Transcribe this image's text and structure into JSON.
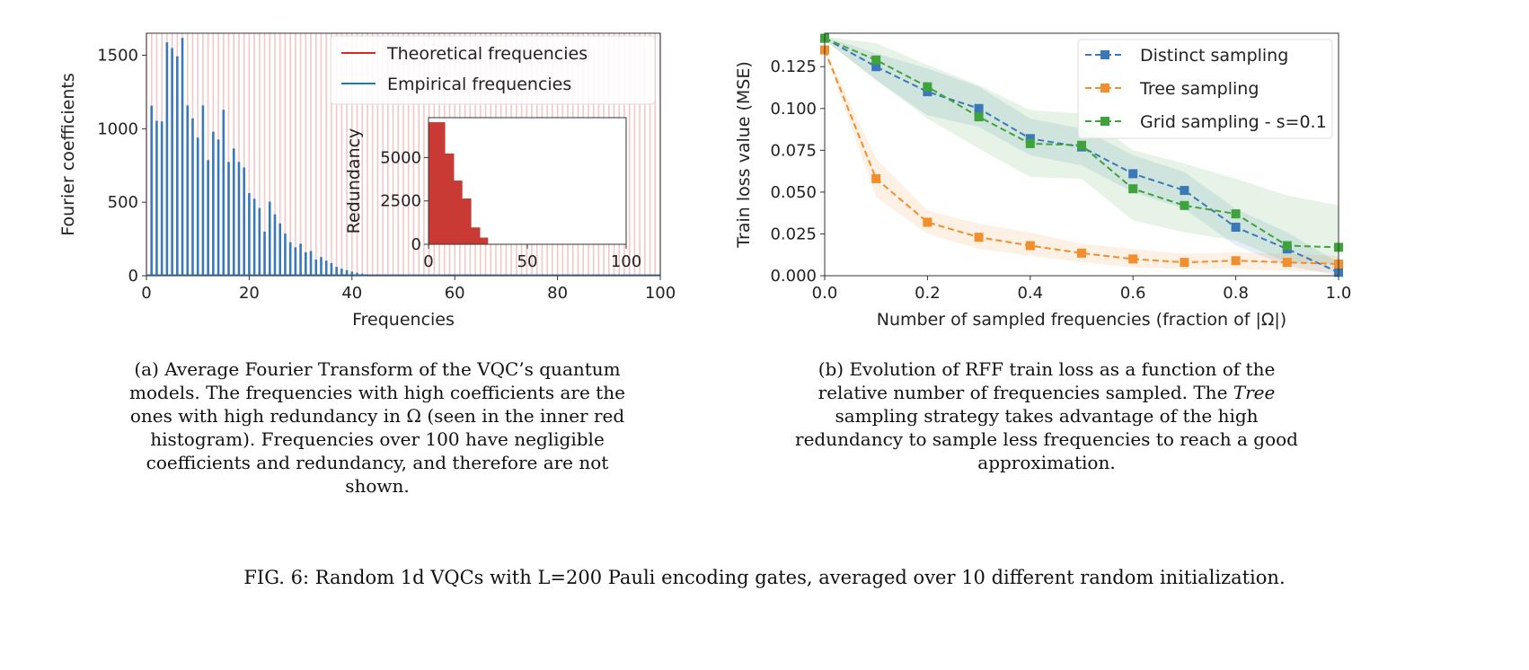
{
  "chart_data": [
    {
      "type": "bar",
      "panel": "(a)",
      "xlabel": "Frequencies",
      "ylabel": "Fourier coefficients",
      "xlim": [
        0,
        100
      ],
      "ylim": [
        0,
        1650
      ],
      "xticks": [
        0,
        20,
        40,
        60,
        80,
        100
      ],
      "yticks": [
        0,
        500,
        1000,
        1500
      ],
      "legend": {
        "placement": "top-right",
        "entries": [
          {
            "name": "Theoretical frequencies",
            "color": "#d62728"
          },
          {
            "name": "Empirical frequencies",
            "color": "#1f77b4"
          }
        ]
      },
      "theoretical_frequencies": {
        "from": 0,
        "to": 100,
        "step": 1,
        "color": "#f4c7c7"
      },
      "series": [
        {
          "name": "Empirical frequencies",
          "color": "#3a78b8",
          "x": [
            1,
            2,
            3,
            4,
            5,
            6,
            7,
            8,
            9,
            10,
            11,
            12,
            13,
            14,
            15,
            16,
            17,
            18,
            19,
            20,
            21,
            22,
            23,
            24,
            25,
            26,
            27,
            28,
            29,
            30,
            31,
            32,
            33,
            34,
            35,
            36,
            37,
            38,
            39,
            40,
            41,
            42,
            43,
            44,
            45,
            46,
            47,
            48
          ],
          "values": [
            1157,
            1054,
            1050,
            1588,
            1549,
            1493,
            1618,
            1159,
            1071,
            940,
            1159,
            787,
            980,
            927,
            1129,
            774,
            866,
            774,
            737,
            562,
            524,
            461,
            300,
            504,
            418,
            356,
            287,
            228,
            194,
            218,
            160,
            168,
            110,
            127,
            103,
            86,
            60,
            48,
            38,
            28,
            20,
            14,
            10,
            7,
            5,
            3,
            2,
            1
          ]
        }
      ],
      "inset": {
        "type": "histogram",
        "ylabel": "Redundancy",
        "xlim": [
          0,
          100
        ],
        "ylim": [
          0,
          7300
        ],
        "xticks": [
          0,
          50,
          100
        ],
        "yticks": [
          0,
          2500,
          5000
        ],
        "color": "#c83a33",
        "bin_edges": [
          0,
          4.1,
          8.3,
          12.8,
          17,
          21.5,
          26,
          30
        ],
        "values": [
          7037,
          7037,
          5231,
          3673,
          2639,
          972,
          386,
          123
        ]
      }
    },
    {
      "type": "line",
      "panel": "(b)",
      "xlabel": "Number of sampled frequencies (fraction of |Ω|)",
      "ylabel": "Train loss value (MSE)",
      "xlim": [
        0,
        1
      ],
      "ylim": [
        0,
        0.145
      ],
      "xticks": [
        "0.0",
        "0.2",
        "0.4",
        "0.6",
        "0.8",
        "1.0"
      ],
      "yticks": [
        "0.000",
        "0.025",
        "0.050",
        "0.075",
        "0.100",
        "0.125"
      ],
      "legend": {
        "placement": "top-right"
      },
      "x": [
        0,
        0.1,
        0.2,
        0.3,
        0.4,
        0.5,
        0.6,
        0.7,
        0.8,
        0.9,
        1.0
      ],
      "series": [
        {
          "name": "Distinct sampling",
          "color": "#3a78b8",
          "values": [
            0.142,
            0.125,
            0.11,
            0.1,
            0.082,
            0.077,
            0.061,
            0.051,
            0.029,
            0.016,
            0.002
          ],
          "lower": [
            0.141,
            0.117,
            0.096,
            0.089,
            0.072,
            0.066,
            0.05,
            0.04,
            0.018,
            0.006,
            0.0
          ],
          "upper": [
            0.143,
            0.133,
            0.124,
            0.113,
            0.094,
            0.088,
            0.072,
            0.062,
            0.04,
            0.026,
            0.008
          ]
        },
        {
          "name": "Tree sampling",
          "color": "#f28e2b",
          "values": [
            0.135,
            0.058,
            0.032,
            0.023,
            0.018,
            0.0135,
            0.01,
            0.008,
            0.009,
            0.008,
            0.007
          ],
          "lower": [
            0.134,
            0.047,
            0.025,
            0.016,
            0.012,
            0.008,
            0.005,
            0.004,
            0.004,
            0.003,
            0.002
          ],
          "upper": [
            0.136,
            0.07,
            0.039,
            0.031,
            0.026,
            0.019,
            0.016,
            0.013,
            0.014,
            0.013,
            0.012
          ]
        },
        {
          "name": "Grid sampling - s=0.1",
          "color": "#3fa33b",
          "values": [
            0.142,
            0.129,
            0.113,
            0.095,
            0.079,
            0.078,
            0.052,
            0.042,
            0.037,
            0.018,
            0.017
          ],
          "lower": [
            0.141,
            0.117,
            0.094,
            0.076,
            0.059,
            0.058,
            0.033,
            0.026,
            0.021,
            0.008,
            0.007
          ],
          "upper": [
            0.143,
            0.139,
            0.126,
            0.114,
            0.099,
            0.097,
            0.075,
            0.067,
            0.058,
            0.048,
            0.042
          ]
        }
      ]
    }
  ],
  "captions": {
    "a_lines": [
      "(a) Average Fourier Transform of the VQC’s quantum",
      "models. The frequencies with high coefficients are the",
      "ones with high redundancy in Ω (seen in the inner red",
      "histogram). Frequencies over 100 have negligible",
      "coefficients and redundancy, and therefore are not",
      "shown."
    ],
    "b_line1": "(b) Evolution of RFF train loss as a function of the",
    "b_line2a": "relative number of frequencies sampled. The ",
    "b_line2b": "Tree",
    "b_line3": "sampling strategy takes advantage of the high",
    "b_line4": "redundancy to sample less frequencies to reach a good",
    "b_line5": "approximation.",
    "figure": "FIG. 6: Random 1d VQCs with L=200 Pauli encoding gates, averaged over 10 different random initialization."
  }
}
